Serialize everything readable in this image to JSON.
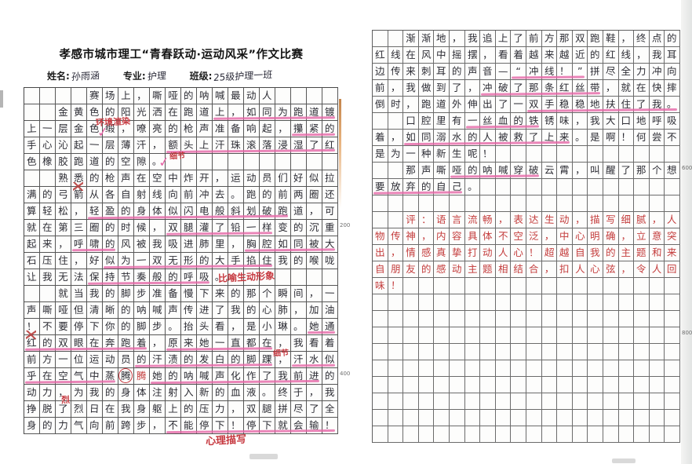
{
  "header": {
    "competition_title": "孝感市城市理工“青春跃动·运动风采”作文比赛",
    "name_label": "姓名:",
    "name_value": "孙雨涵",
    "major_label": "专业:",
    "major_value": "护理",
    "class_label": "班级:",
    "class_value": "25级护理一班"
  },
  "essay_title": "赛场上，嘶哑的呐喊最动人",
  "colors": {
    "ink": "#2c2c34",
    "red_ink": "#c43d3d",
    "pink_underline": "#e566a6",
    "grid_line": "#565656"
  },
  "left_page": {
    "total_rows": 21,
    "rows": [
      "    赛场上，嘶哑的呐喊最动人",
      "  金黄色的阳光洒在跑道上，如同为跑道镀",
      "上一层金色缎，嘹亮的枪声准备响起，攥紧的",
      "手心沁起一层薄汗，额头上汗珠滚落浸湿了红",
      "色橡胶跑道的空隙。",
      "  熟悉的枪声在空中炸开，运动员们好似拉",
      "满的弓箭从各自射线向前冲去。跑的前两圈还",
      "算轻松，轻盈的身体似闪电般斜划破跑道，可",
      "就在第三圈的时候，双腿灌了铅一样变的沉重",
      "起来，呼啸的风被我吸进肺里，胸腔如同被大",
      "石压住，好似为一双无形的大手掐住我的喉咙",
      "让我无法保持节奏般的呼吸。",
      "  就当我的脚步准备慢下来的那个瞬间，一",
      "声嘶哑但清晰的呐喊声传进了我的心肺，加油",
      "！不要停下你的脚步。抬头看，是小琳。她通",
      "红的双眼在奔跑着，原来她一直都在，我看着",
      "前方一位运动员的汗渍的发白的脚踝，汗水似",
      "乎在空气中蒸腾腾她的呐喊声化作了我前进的",
      "动力，为我的身体注射入新的血液。终于，我",
      "挣脱了烈日在我身躯上的压力，双腿拼尽了全",
      "身的力气向前跨步，不能停下！停下就会输！"
    ],
    "red_cells": [
      [
        18,
        8
      ]
    ],
    "red_annotations": [
      {
        "text": "环境渲染",
        "row": 2.55,
        "col": 5.6,
        "size": 11
      },
      {
        "text": "细节",
        "row": 4.6,
        "col": 10.3,
        "size": 10
      },
      {
        "text": "比喻生动形象",
        "row": 11.95,
        "col": 13.4,
        "size": 12
      },
      {
        "text": "细节",
        "row": 16.55,
        "col": 16.9,
        "size": 10
      },
      {
        "text": "烈",
        "row": 19.45,
        "col": 3.4,
        "size": 11
      },
      {
        "text": "心理描写",
        "row": 21.75,
        "col": 12.6,
        "size": 13
      }
    ],
    "underlines": [
      [
        2,
        13,
        20
      ],
      [
        3,
        18,
        20
      ],
      [
        4,
        10,
        20
      ],
      [
        8,
        5,
        17
      ],
      [
        9,
        10,
        16
      ],
      [
        10,
        4,
        6
      ],
      [
        10,
        15,
        20
      ],
      [
        11,
        6,
        16
      ],
      [
        12,
        5,
        12
      ],
      [
        15,
        19,
        20
      ],
      [
        16,
        1,
        8
      ],
      [
        16,
        10,
        16
      ],
      [
        17,
        8,
        16
      ],
      [
        17,
        18,
        20
      ],
      [
        18,
        1,
        6
      ],
      [
        18,
        9,
        19
      ],
      [
        21,
        10,
        20
      ]
    ],
    "checks": [
      [
        3.3,
        5.7
      ],
      [
        5.1,
        9.6
      ]
    ],
    "circles": [
      [
        18,
        7
      ]
    ],
    "scribbles": [
      [
        7,
        4
      ],
      [
        16,
        1
      ]
    ],
    "margin_markers": [
      {
        "row": 9,
        "label": "200"
      },
      {
        "row": 18,
        "label": "400"
      }
    ]
  },
  "right_page": {
    "total_rows": 25,
    "rows": [
      "  渐渐地，我追上了前方那双跑鞋，终点的",
      "红线在风中摇摆，看着越来越近的红线，我耳",
      "边传来刺耳的声音—“冲线！”拼尽全力冲向",
      "前，我做到了，冲破了那条红丝带，就在快摔",
      "倒时，跑道外伸出了一双手稳稳地扶住了我。",
      "  口腔里有一丝血的铁锈味，我大口地呼吸",
      "着，如同溺水的人被救了上来。是啊！何尝不",
      "是为一种新生呢！",
      "  那声嘶哑的呐喊穿破云霄，叫醒了那个想",
      "要放弃的自己。",
      "",
      "  评：语言流畅，表达生动，描写细腻，人",
      "物传神，内容具体不空泛，中心明确，立意突",
      "出，情感真挚打动人心！超越自我的主题和来",
      "自朋友的感动主题相结合，扣人心弦，令人回",
      "味！",
      "",
      "",
      "",
      "",
      "",
      "",
      "",
      "",
      ""
    ],
    "red_row_start": 12,
    "red_row_end": 16,
    "red_annotations": [],
    "underlines": [
      [
        3,
        10,
        14
      ],
      [
        4,
        8,
        15
      ],
      [
        5,
        11,
        20
      ],
      [
        6,
        7,
        11
      ],
      [
        7,
        3,
        13
      ],
      [
        9,
        6,
        11
      ],
      [
        10,
        1,
        6
      ]
    ],
    "checks": [],
    "circles": [],
    "scribbles": [],
    "margin_markers": [
      {
        "row": 9,
        "label": "600"
      },
      {
        "row": 19,
        "label": "800"
      }
    ]
  }
}
